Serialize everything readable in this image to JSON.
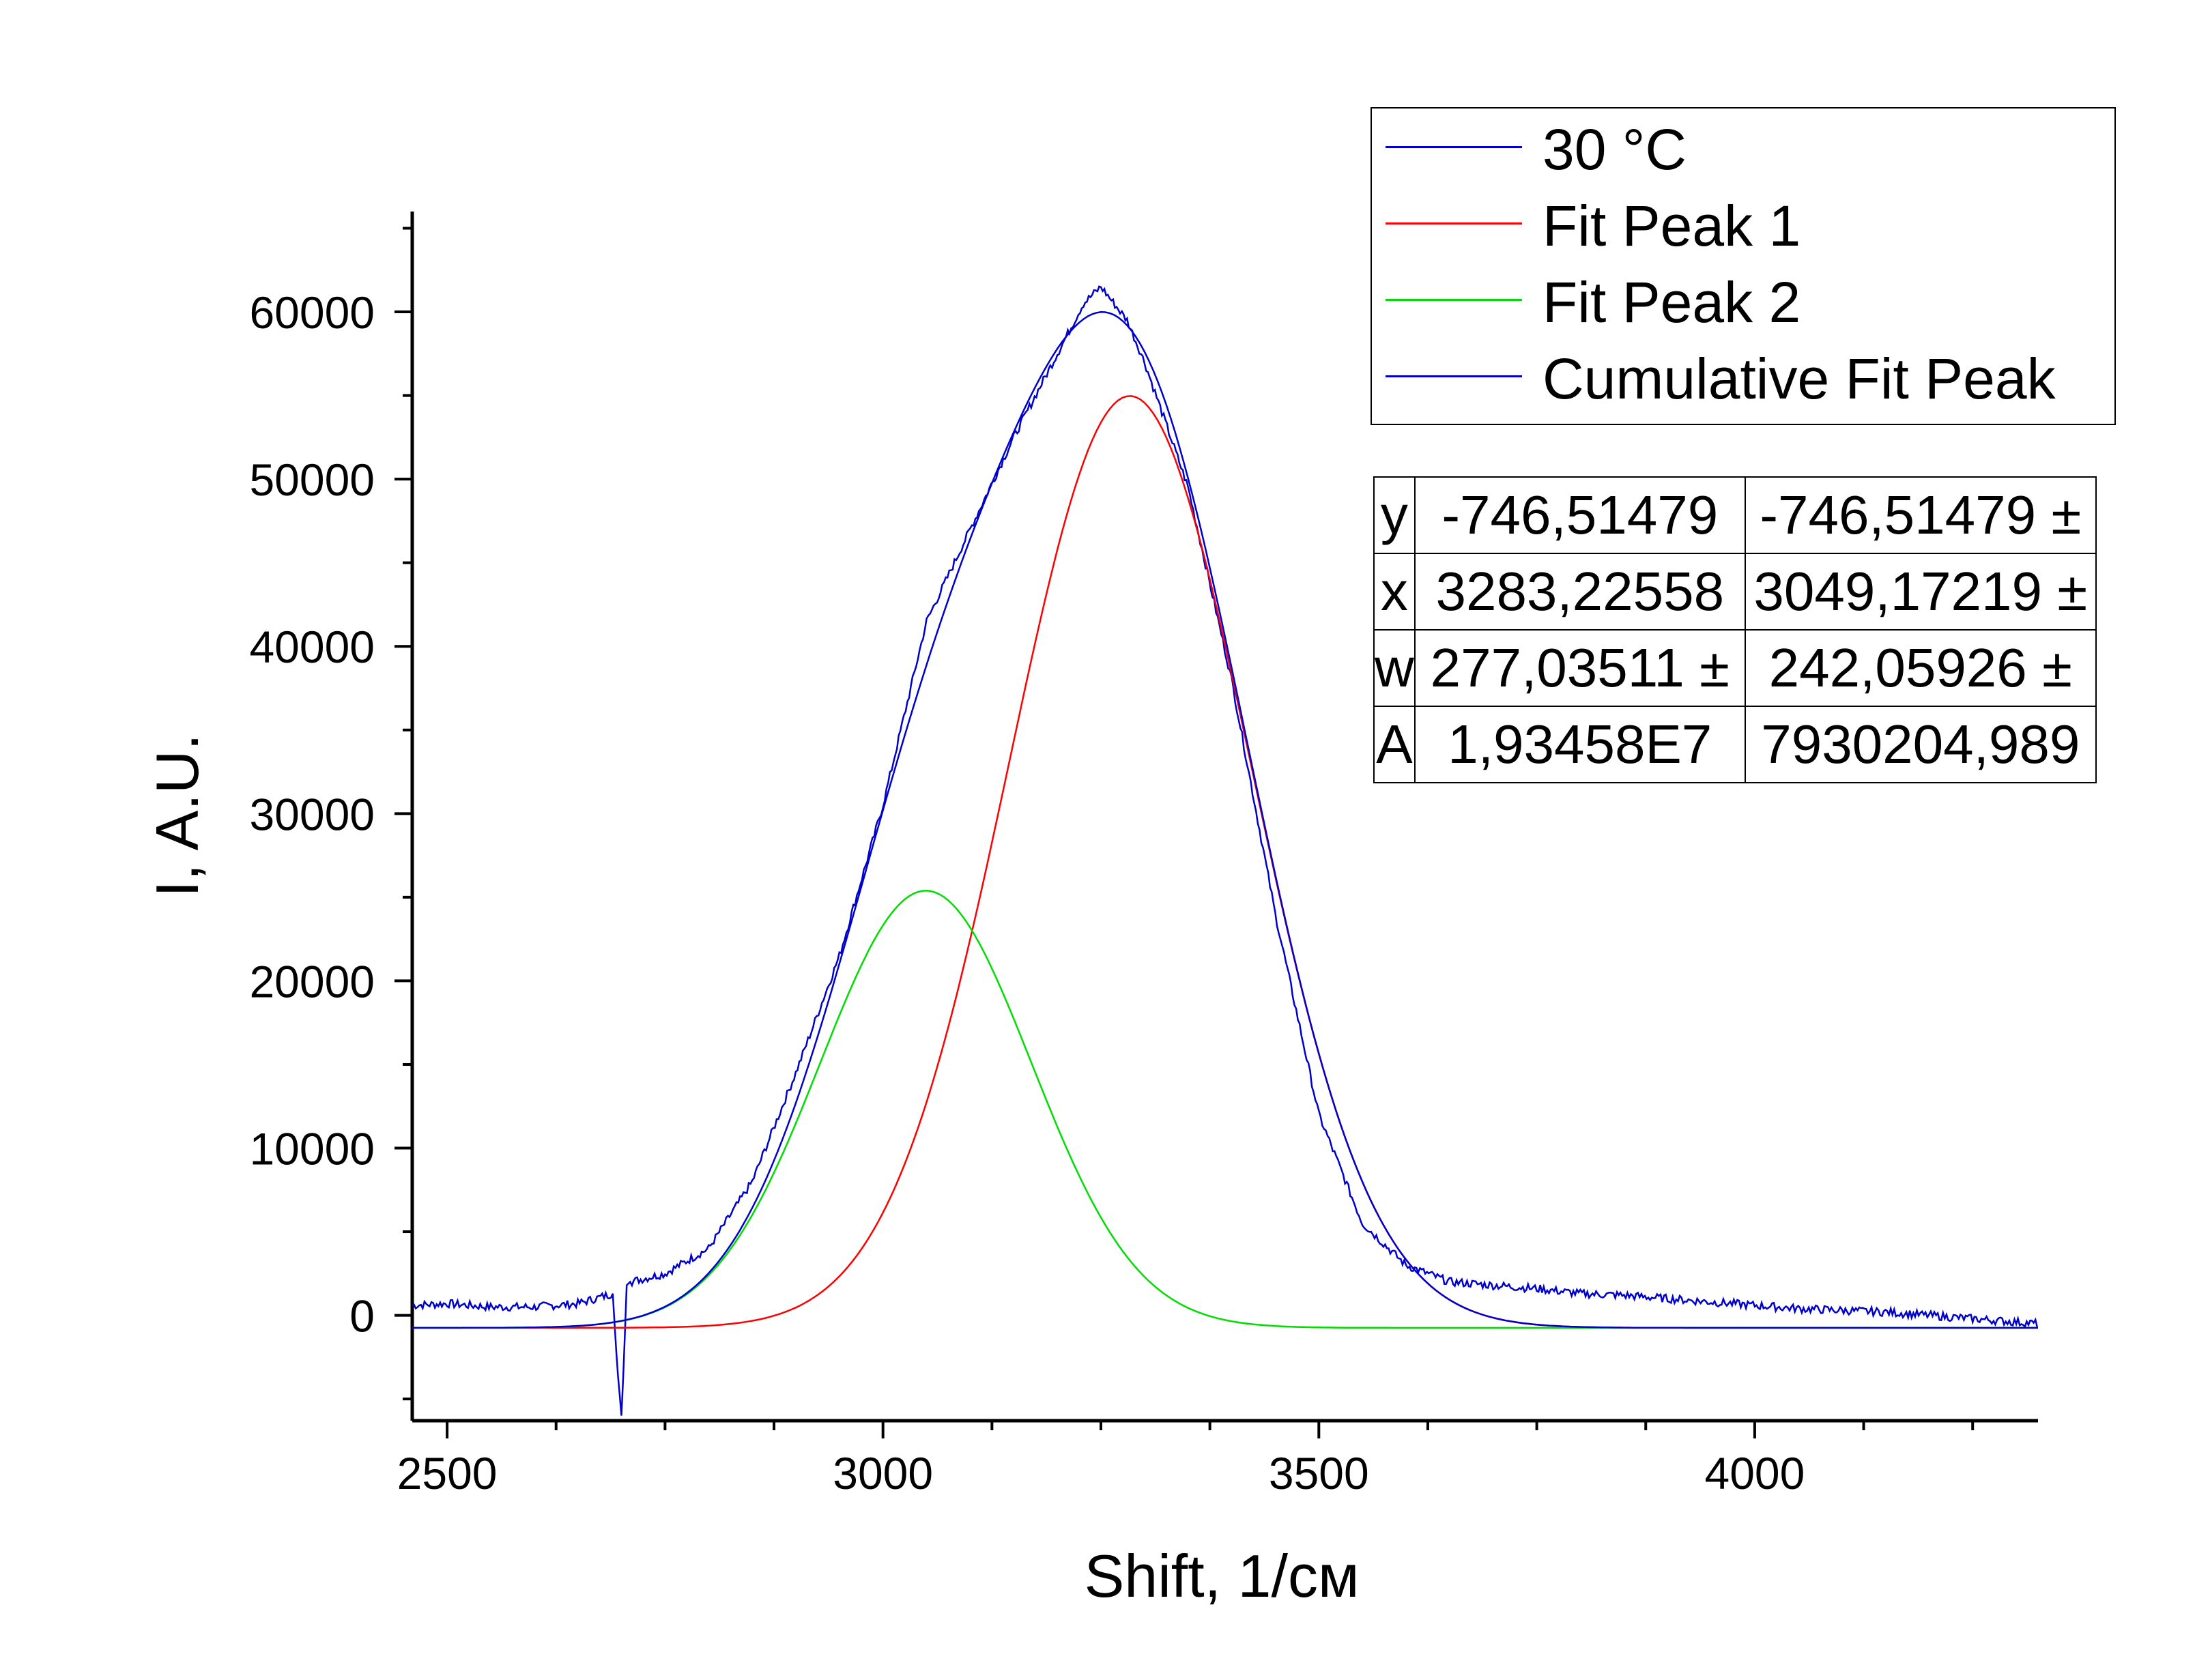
{
  "chart_data": {
    "type": "line",
    "xlabel": "Shift, 1/см",
    "ylabel": "I, A.U.",
    "xlim": [
      2460,
      4325
    ],
    "ylim": [
      -6300,
      66000
    ],
    "x_ticks": [
      "2500",
      "3000",
      "3500",
      "4000"
    ],
    "y_ticks": [
      "0",
      "10000",
      "20000",
      "30000",
      "40000",
      "50000",
      "60000"
    ],
    "x_tick_values": [
      2500,
      3000,
      3500,
      4000
    ],
    "y_tick_values": [
      0,
      10000,
      20000,
      30000,
      40000,
      50000,
      60000
    ],
    "grid": false,
    "legend_position": "top-right",
    "series": [
      {
        "name": "30 °C",
        "color": "#0000cc",
        "x": [
          2460,
          2500,
          2550,
          2600,
          2650,
          2690,
          2695,
          2700,
          2703,
          2706,
          2710,
          2750,
          2800,
          2850,
          2900,
          2950,
          3000,
          3050,
          3100,
          3150,
          3200,
          3230,
          3250,
          3265,
          3280,
          3300,
          3350,
          3400,
          3450,
          3500,
          3550,
          3600,
          3650,
          3700,
          3750,
          3800,
          3850,
          3900,
          3950,
          4000,
          4050,
          4100,
          4150,
          4200,
          4250,
          4300,
          4325
        ],
        "y": [
          600,
          700,
          500,
          500,
          700,
          1300,
          -3000,
          -6000,
          -2500,
          1800,
          2000,
          2500,
          4000,
          8000,
          14500,
          21500,
          30500,
          41500,
          47000,
          52500,
          57500,
          60500,
          61500,
          60500,
          59500,
          57000,
          49500,
          38000,
          24000,
          12000,
          5500,
          3000,
          2000,
          1800,
          1600,
          1300,
          1200,
          1000,
          800,
          600,
          400,
          300,
          200,
          0,
          -200,
          -400,
          -500
        ]
      },
      {
        "name": "Fit Peak 1",
        "color": "#ff0000",
        "baseline": -746.51479,
        "center": 3283.22558,
        "width": 277.03511,
        "area": 19345800
      },
      {
        "name": "Fit Peak 2",
        "color": "#00dd00",
        "baseline": -746.51479,
        "center": 3049.17219,
        "width": 242.05926,
        "area": 7930204.989
      },
      {
        "name": "Cumulative Fit Peak",
        "color": "#0000cc"
      }
    ]
  },
  "fit_table": {
    "rows": [
      {
        "key": "y",
        "v1": "-746,51479",
        "v2": "-746,51479 ±"
      },
      {
        "key": "x",
        "v1": "3283,22558",
        "v2": "3049,17219 ±"
      },
      {
        "key": "w",
        "v1": "277,03511 ±",
        "v2": "242,05926 ±"
      },
      {
        "key": "A",
        "v1": "1,93458E7",
        "v2": "7930204,989"
      }
    ]
  }
}
